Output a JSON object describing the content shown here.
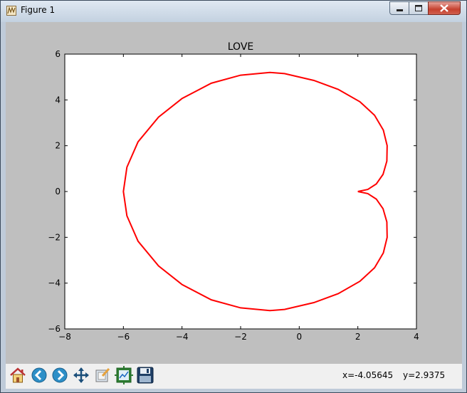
{
  "window": {
    "title": "Figure 1",
    "title_icon": "matplotlib-figure-icon"
  },
  "window_controls": {
    "minimize": "minimize-icon",
    "maximize": "maximize-icon",
    "close": "close-icon"
  },
  "toolbar": {
    "buttons": [
      {
        "name": "home-button",
        "icon": "home-icon"
      },
      {
        "name": "back-button",
        "icon": "back-arrow-icon"
      },
      {
        "name": "forward-button",
        "icon": "forward-arrow-icon"
      },
      {
        "name": "pan-button",
        "icon": "pan-move-icon"
      },
      {
        "name": "zoom-button",
        "icon": "zoom-rect-icon"
      },
      {
        "name": "subplots-button",
        "icon": "subplots-config-icon"
      },
      {
        "name": "save-button",
        "icon": "floppy-disk-icon"
      }
    ],
    "coords": {
      "x": "x=-4.05645",
      "y": "y=2.9375"
    }
  },
  "chart_data": {
    "type": "line",
    "title": "LOVE",
    "xlabel": "",
    "ylabel": "",
    "xlim": [
      -8,
      4
    ],
    "ylim": [
      -6,
      6
    ],
    "xticks": [
      -8,
      -6,
      -4,
      -2,
      0,
      2,
      4
    ],
    "yticks": [
      -6,
      -4,
      -2,
      0,
      2,
      4,
      6
    ],
    "xtick_labels": [
      "−8",
      "−6",
      "−4",
      "−2",
      "0",
      "2",
      "4"
    ],
    "ytick_labels": [
      "−6",
      "−4",
      "−2",
      "0",
      "2",
      "4",
      "6"
    ],
    "grid": false,
    "series": [
      {
        "color": "#ff0000",
        "points": [
          [
            2,
            0
          ],
          [
            2.34,
            -0.09
          ],
          [
            2.63,
            -0.33
          ],
          [
            2.86,
            -0.75
          ],
          [
            2.99,
            -1.33
          ],
          [
            3,
            -2
          ],
          [
            2.87,
            -2.68
          ],
          [
            2.57,
            -3.33
          ],
          [
            2.07,
            -3.92
          ],
          [
            1.33,
            -4.46
          ],
          [
            0.5,
            -4.85
          ],
          [
            -0.5,
            -5.15
          ],
          [
            -1,
            -5.2
          ],
          [
            -2,
            -5.08
          ],
          [
            -3,
            -4.73
          ],
          [
            -4,
            -4.06
          ],
          [
            -4.8,
            -3.25
          ],
          [
            -5.5,
            -2.17
          ],
          [
            -5.88,
            -1.06
          ],
          [
            -6,
            0
          ],
          [
            -5.88,
            1.06
          ],
          [
            -5.5,
            2.17
          ],
          [
            -4.8,
            3.25
          ],
          [
            -4,
            4.06
          ],
          [
            -3,
            4.73
          ],
          [
            -2,
            5.08
          ],
          [
            -1,
            5.2
          ],
          [
            -0.5,
            5.15
          ],
          [
            0.5,
            4.85
          ],
          [
            1.33,
            4.46
          ],
          [
            2.07,
            3.92
          ],
          [
            2.57,
            3.33
          ],
          [
            2.87,
            2.68
          ],
          [
            3,
            2
          ],
          [
            2.99,
            1.33
          ],
          [
            2.86,
            0.75
          ],
          [
            2.63,
            0.33
          ],
          [
            2.34,
            0.09
          ],
          [
            2,
            0
          ]
        ]
      }
    ]
  }
}
